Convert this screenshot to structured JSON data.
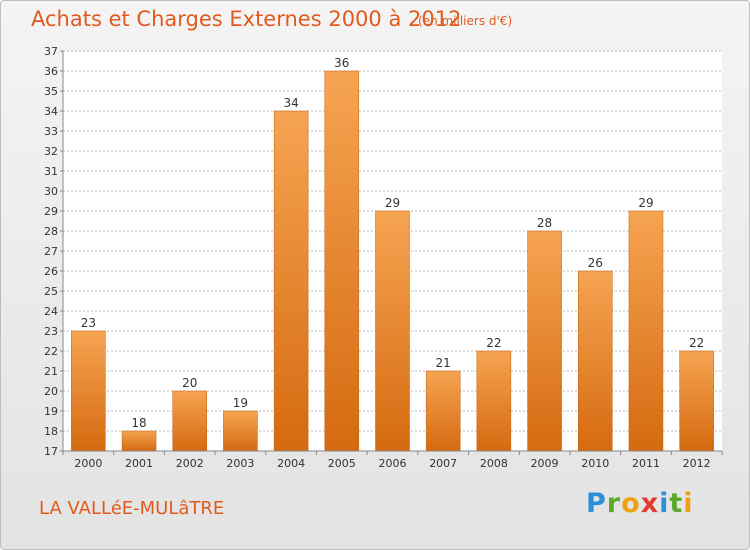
{
  "header": {
    "title": "Achats et Charges Externes 2000 à 2012",
    "unit": "(en milliers d'€)"
  },
  "footer": {
    "commune": "LA VALLéE-MULâTRE",
    "logo_letters": [
      {
        "char": "P",
        "color": "#2e8fd6"
      },
      {
        "char": "r",
        "color": "#59a92a"
      },
      {
        "char": "o",
        "color": "#f0a014"
      },
      {
        "char": "x",
        "color": "#e03b2c"
      },
      {
        "char": "i",
        "color": "#2e8fd6"
      },
      {
        "char": "t",
        "color": "#59a92a"
      },
      {
        "char": "i",
        "color": "#f0a014"
      }
    ]
  },
  "colors": {
    "bar_light": "#f6a452",
    "bar_dark": "#d56a10",
    "bar_edge": "#c65f0c",
    "grid": "#b8b8b8",
    "accent": "#e05a1e"
  },
  "chart_data": {
    "type": "bar",
    "categories": [
      "2000",
      "2001",
      "2002",
      "2003",
      "2004",
      "2005",
      "2006",
      "2007",
      "2008",
      "2009",
      "2010",
      "2011",
      "2012"
    ],
    "values": [
      23,
      18,
      20,
      19,
      34,
      36,
      29,
      21,
      22,
      28,
      26,
      29,
      22
    ],
    "data_labels": [
      "23",
      "18",
      "20",
      "19",
      "34",
      "36",
      "29",
      "21",
      "22",
      "28",
      "26",
      "29",
      "22"
    ],
    "yticks": [
      "17",
      "18",
      "19",
      "20",
      "21",
      "22",
      "23",
      "24",
      "25",
      "26",
      "27",
      "28",
      "29",
      "30",
      "31",
      "32",
      "33",
      "34",
      "35",
      "36",
      "37"
    ],
    "title": "Achats et Charges Externes 2000 à 2012",
    "xlabel": "",
    "ylabel": "",
    "ylim": [
      17,
      37
    ],
    "grid": true
  }
}
